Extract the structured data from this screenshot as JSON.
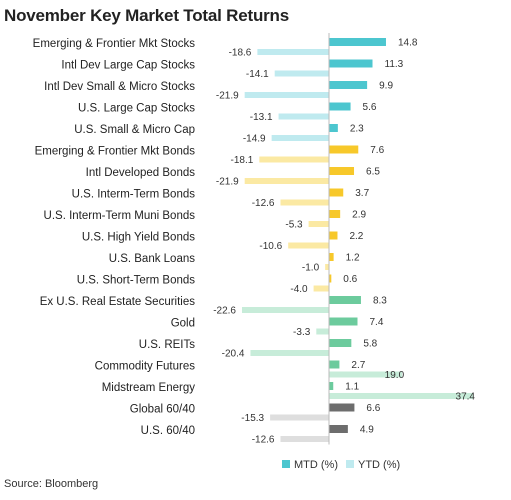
{
  "title": "November Key Market Total Returns",
  "source": "Source: Bloomberg",
  "colors": {
    "equity_mtd": "#4cc6cf",
    "equity_ytd": "#bfeaef",
    "bond_mtd": "#f7c82a",
    "bond_ytd": "#fbe9a3",
    "real_mtd": "#6ccb9d",
    "real_ytd": "#c7ecd9",
    "balanced_mtd": "#6d6d6d",
    "balanced_ytd": "#dedede",
    "axis": "#bbbbbb",
    "label_text": "#222222",
    "value_text": "#333333"
  },
  "chart_data": {
    "type": "bar",
    "orientation": "horizontal",
    "title": "November Key Market Total Returns",
    "categories": [
      "Emerging & Frontier Mkt Stocks",
      "Intl Dev Large Cap Stocks",
      "Intl Dev Small & Micro Stocks",
      "U.S. Large Cap Stocks",
      "U.S. Small & Micro Cap",
      "Emerging & Frontier Mkt Bonds",
      "Intl Developed Bonds",
      "U.S. Interm-Term Bonds",
      "U.S. Interm-Term Muni Bonds",
      "U.S. High Yield Bonds",
      "U.S. Bank Loans",
      "U.S. Short-Term Bonds",
      "Ex U.S. Real Estate Securities",
      "Gold",
      "U.S. REITs",
      "Commodity Futures",
      "Midstream Energy",
      "Global 60/40",
      "U.S. 60/40"
    ],
    "groups": [
      "equity",
      "equity",
      "equity",
      "equity",
      "equity",
      "bond",
      "bond",
      "bond",
      "bond",
      "bond",
      "bond",
      "bond",
      "real",
      "real",
      "real",
      "real",
      "real",
      "balanced",
      "balanced"
    ],
    "series": [
      {
        "name": "MTD (%)",
        "values": [
          14.8,
          11.3,
          9.9,
          5.6,
          2.3,
          7.6,
          6.5,
          3.7,
          2.9,
          2.2,
          1.2,
          0.6,
          8.3,
          7.4,
          5.8,
          2.7,
          1.1,
          6.6,
          4.9
        ]
      },
      {
        "name": "YTD (%)",
        "values": [
          -18.6,
          -14.1,
          -21.9,
          -13.1,
          -14.9,
          -18.1,
          -21.9,
          -12.6,
          -5.3,
          -10.6,
          -1.0,
          -4.0,
          -22.6,
          -3.3,
          -20.4,
          19.0,
          37.4,
          -15.3,
          -12.6
        ]
      }
    ],
    "value_labels": {
      "mtd": [
        "14.8",
        "11.3",
        "9.9",
        "5.6",
        "2.3",
        "7.6",
        "6.5",
        "3.7",
        "2.9",
        "2.2",
        "1.2",
        "0.6",
        "8.3",
        "7.4",
        "5.8",
        "2.7",
        "1.1",
        "6.6",
        "4.9"
      ],
      "ytd": [
        "-18.6",
        "-14.1",
        "-21.9",
        "-13.1",
        "-14.9",
        "-18.1",
        "-21.9",
        "-12.6",
        "-5.3",
        "-10.6",
        "-1.0",
        "-4.0",
        "-22.6",
        "-3.3",
        "-20.4",
        "19.0",
        "37.4",
        "-15.3",
        "-12.6"
      ]
    },
    "legend": {
      "position": "bottom-right",
      "entries": [
        "MTD (%)",
        "YTD (%)"
      ]
    },
    "grid": false
  }
}
